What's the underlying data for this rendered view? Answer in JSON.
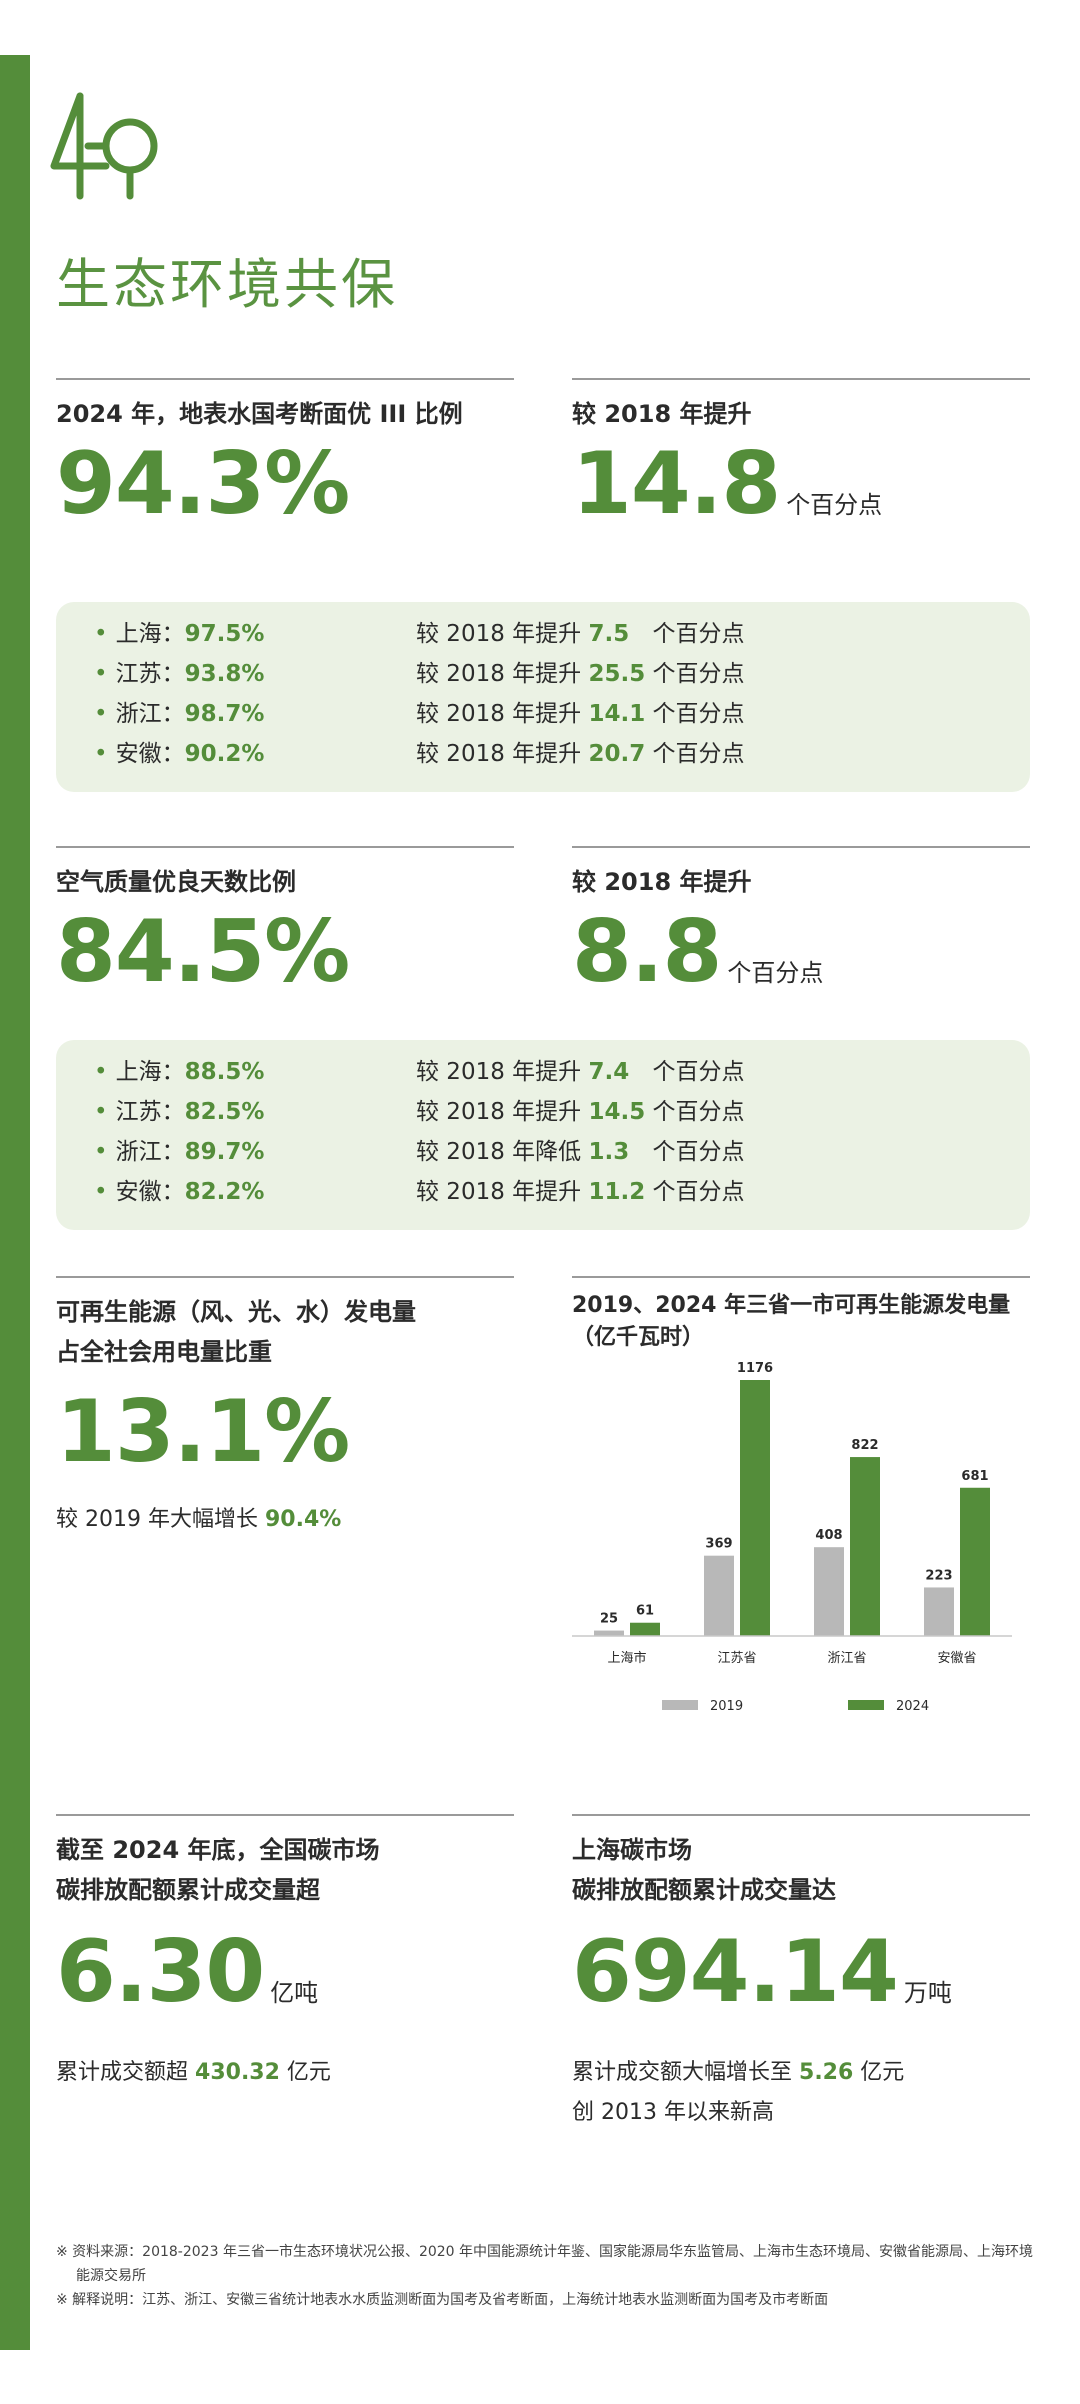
{
  "page": {
    "title": "生态环境共保",
    "colors": {
      "accent": "#548d3a",
      "panel_bg": "#ebf2e4",
      "bar_2019": "#b8b8b8",
      "bar_2024": "#548d3a"
    }
  },
  "water": {
    "label": "2024 年，地表水国考断面优 III 比例",
    "value": "94.3%",
    "compare_label": "较 2018 年提升",
    "compare_value": "14.8",
    "compare_unit": "个百分点",
    "provinces": [
      {
        "name": "上海：",
        "value": "97.5%",
        "cmp_prefix": "较 2018 年提升",
        "cmp_value": "7.5",
        "cmp_unit": "个百分点"
      },
      {
        "name": "江苏：",
        "value": "93.8%",
        "cmp_prefix": "较 2018 年提升",
        "cmp_value": "25.5",
        "cmp_unit": "个百分点"
      },
      {
        "name": "浙江：",
        "value": "98.7%",
        "cmp_prefix": "较 2018 年提升",
        "cmp_value": "14.1",
        "cmp_unit": "个百分点"
      },
      {
        "name": "安徽：",
        "value": "90.2%",
        "cmp_prefix": "较 2018 年提升",
        "cmp_value": "20.7",
        "cmp_unit": "个百分点"
      }
    ]
  },
  "air": {
    "label": "空气质量优良天数比例",
    "value": "84.5%",
    "compare_label": "较 2018 年提升",
    "compare_value": "8.8",
    "compare_unit": "个百分点",
    "provinces": [
      {
        "name": "上海：",
        "value": "88.5%",
        "cmp_prefix": "较 2018 年提升",
        "cmp_value": "7.4",
        "cmp_unit": "个百分点"
      },
      {
        "name": "江苏：",
        "value": "82.5%",
        "cmp_prefix": "较 2018 年提升",
        "cmp_value": "14.5",
        "cmp_unit": "个百分点"
      },
      {
        "name": "浙江：",
        "value": "89.7%",
        "cmp_prefix": "较 2018 年降低",
        "cmp_value": "1.3",
        "cmp_unit": "个百分点"
      },
      {
        "name": "安徽：",
        "value": "82.2%",
        "cmp_prefix": "较 2018 年提升",
        "cmp_value": "11.2",
        "cmp_unit": "个百分点"
      }
    ]
  },
  "renewable": {
    "label_line1": "可再生能源（风、光、水）发电量",
    "label_line2": "占全社会用电量比重",
    "value": "13.1%",
    "note_prefix": "较 2019 年大幅增长",
    "note_value": "90.4%"
  },
  "chart_data": {
    "type": "bar",
    "title_line1": "2019、2024 年三省一市可再生能源发电量",
    "title_line2": "（亿千瓦时）",
    "categories": [
      "上海市",
      "江苏省",
      "浙江省",
      "安徽省"
    ],
    "series": [
      {
        "name": "2019",
        "values": [
          25,
          369,
          408,
          223
        ]
      },
      {
        "name": "2024",
        "values": [
          61,
          1176,
          822,
          681
        ]
      }
    ],
    "ylim": [
      0,
      1176
    ],
    "legend_position": "bottom"
  },
  "carbon_national": {
    "label_line1": "截至 2024 年底，全国碳市场",
    "label_line2": "碳排放配额累计成交量超",
    "value": "6.30",
    "unit": "亿吨",
    "note_prefix": "累计成交额超",
    "note_value": "430.32",
    "note_suffix": "亿元"
  },
  "carbon_shanghai": {
    "label_line1": "上海碳市场",
    "label_line2": "碳排放配额累计成交量达",
    "value": "694.14",
    "unit": "万吨",
    "note_prefix": "累计成交额大幅增长至",
    "note_value": "5.26",
    "note_suffix": "亿元",
    "note_line2": "创 2013 年以来新高"
  },
  "footnotes": [
    "※ 资料来源：2018-2023 年三省一市生态环境状况公报、2020 年中国能源统计年鉴、国家能源局华东监管局、上海市生态环境局、安徽省能源局、上海环境能源交易所",
    "※ 解释说明：江苏、浙江、安徽三省统计地表水水质监测断面为国考及省考断面，上海统计地表水监测断面为国考及市考断面"
  ]
}
